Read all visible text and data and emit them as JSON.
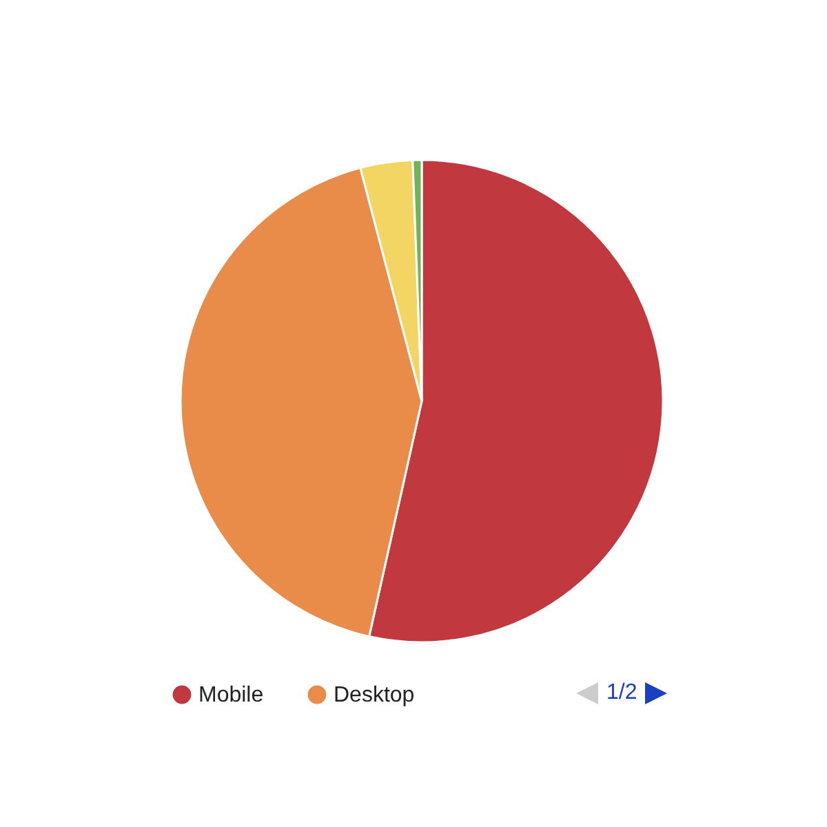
{
  "chart_data": {
    "type": "pie",
    "categories": [
      "Mobile",
      "Desktop",
      null,
      null
    ],
    "values": [
      53.5,
      42.4,
      3.5,
      0.6
    ],
    "colors": [
      "#c1383f",
      "#e98c4a",
      "#f2d563",
      "#6fb35a"
    ],
    "legend": "bottom",
    "annotations": [
      "1/2"
    ]
  }
}
